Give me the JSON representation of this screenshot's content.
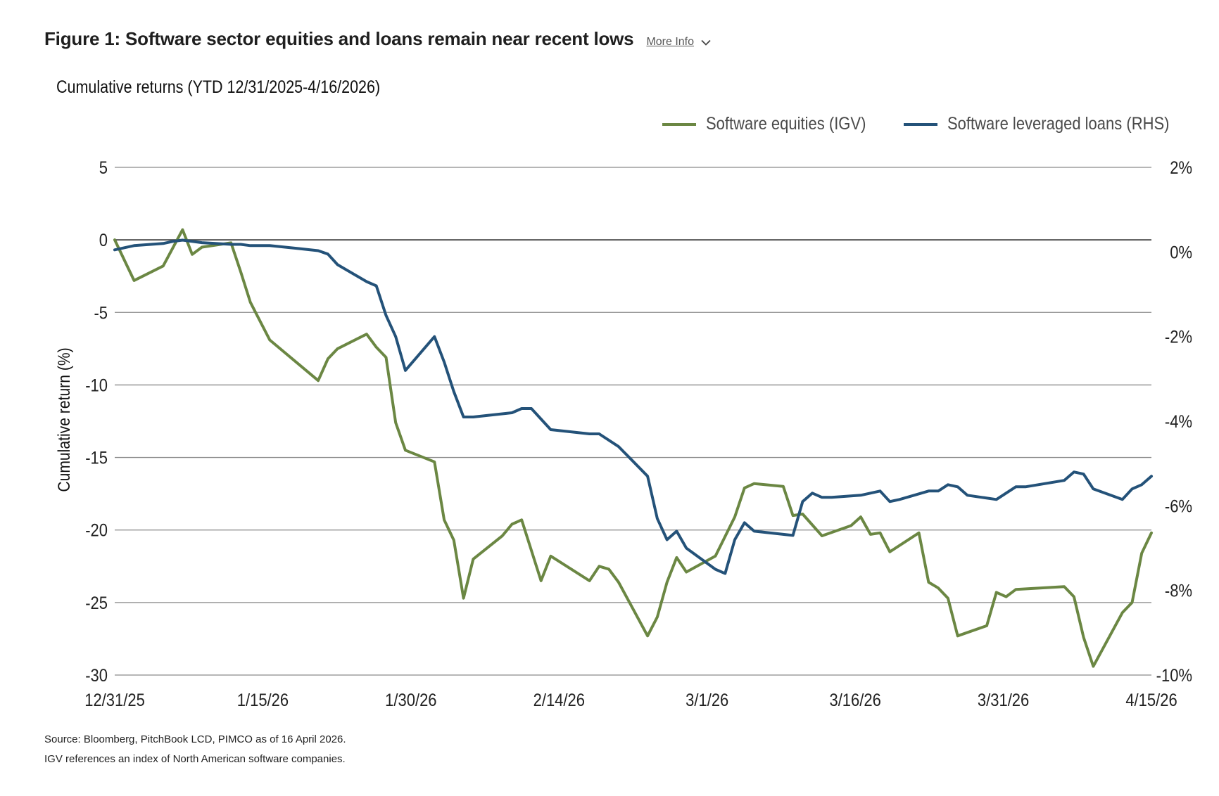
{
  "header": {
    "title": "Figure 1: Software sector equities and loans remain near recent lows",
    "more_info_label": "More Info"
  },
  "chart_data": {
    "type": "line",
    "title": "Cumulative returns (YTD 12/31/2025-4/16/2026)",
    "ylabel": "Cumulative return (%)",
    "ylabel_right": "",
    "ylim": [
      -30,
      5
    ],
    "ylim_right": [
      -10,
      2
    ],
    "yticks": [
      5,
      0,
      -5,
      -10,
      -15,
      -20,
      -25,
      -30
    ],
    "yticks_right": [
      "2%",
      "0%",
      "-2%",
      "-4%",
      "-6%",
      "-8%",
      "-10%"
    ],
    "yticks_right_values": [
      2,
      0,
      -2,
      -4,
      -6,
      -8,
      -10
    ],
    "xticks": [
      "12/31/25",
      "1/15/26",
      "1/30/26",
      "2/14/26",
      "3/1/26",
      "3/16/26",
      "3/31/26",
      "4/15/26"
    ],
    "legend_position": "top-right",
    "grid": true,
    "series": [
      {
        "name": "Software equities (IGV)",
        "axis": "left",
        "color": "#6b8743",
        "points": [
          [
            "2025-12-31",
            0.0
          ],
          [
            "2026-01-02",
            -2.8
          ],
          [
            "2026-01-05",
            -1.8
          ],
          [
            "2026-01-07",
            0.7
          ],
          [
            "2026-01-08",
            -1.0
          ],
          [
            "2026-01-09",
            -0.5
          ],
          [
            "2026-01-12",
            -0.2
          ],
          [
            "2026-01-13",
            -2.2
          ],
          [
            "2026-01-14",
            -4.3
          ],
          [
            "2026-01-16",
            -6.9
          ],
          [
            "2026-01-21",
            -9.7
          ],
          [
            "2026-01-22",
            -8.2
          ],
          [
            "2026-01-23",
            -7.5
          ],
          [
            "2026-01-26",
            -6.5
          ],
          [
            "2026-01-27",
            -7.4
          ],
          [
            "2026-01-28",
            -8.1
          ],
          [
            "2026-01-29",
            -12.6
          ],
          [
            "2026-01-30",
            -14.5
          ],
          [
            "2026-02-02",
            -15.3
          ],
          [
            "2026-02-03",
            -19.3
          ],
          [
            "2026-02-04",
            -20.7
          ],
          [
            "2026-02-05",
            -24.7
          ],
          [
            "2026-02-06",
            -22.0
          ],
          [
            "2026-02-09",
            -20.4
          ],
          [
            "2026-02-10",
            -19.6
          ],
          [
            "2026-02-11",
            -19.3
          ],
          [
            "2026-02-13",
            -23.5
          ],
          [
            "2026-02-14",
            -21.8
          ],
          [
            "2026-02-18",
            -23.5
          ],
          [
            "2026-02-19",
            -22.5
          ],
          [
            "2026-02-20",
            -22.7
          ],
          [
            "2026-02-21",
            -23.6
          ],
          [
            "2026-02-24",
            -27.3
          ],
          [
            "2026-02-25",
            -26.0
          ],
          [
            "2026-02-26",
            -23.6
          ],
          [
            "2026-02-27",
            -21.9
          ],
          [
            "2026-02-28",
            -22.9
          ],
          [
            "2026-03-03",
            -21.8
          ],
          [
            "2026-03-05",
            -19.1
          ],
          [
            "2026-03-06",
            -17.1
          ],
          [
            "2026-03-07",
            -16.8
          ],
          [
            "2026-03-10",
            -17.0
          ],
          [
            "2026-03-11",
            -19.0
          ],
          [
            "2026-03-12",
            -18.9
          ],
          [
            "2026-03-14",
            -20.4
          ],
          [
            "2026-03-17",
            -19.7
          ],
          [
            "2026-03-18",
            -19.1
          ],
          [
            "2026-03-19",
            -20.3
          ],
          [
            "2026-03-20",
            -20.2
          ],
          [
            "2026-03-21",
            -21.5
          ],
          [
            "2026-03-24",
            -20.2
          ],
          [
            "2026-03-25",
            -23.6
          ],
          [
            "2026-03-26",
            -24.0
          ],
          [
            "2026-03-27",
            -24.7
          ],
          [
            "2026-03-28",
            -27.3
          ],
          [
            "2026-03-31",
            -26.6
          ],
          [
            "2026-04-01",
            -24.3
          ],
          [
            "2026-04-02",
            -24.6
          ],
          [
            "2026-04-03",
            -24.1
          ],
          [
            "2026-04-08",
            -23.9
          ],
          [
            "2026-04-09",
            -24.6
          ],
          [
            "2026-04-10",
            -27.4
          ],
          [
            "2026-04-11",
            -29.4
          ],
          [
            "2026-04-14",
            -25.7
          ],
          [
            "2026-04-15",
            -25.0
          ],
          [
            "2026-04-16",
            -21.6
          ],
          [
            "2026-04-17",
            -20.2
          ]
        ]
      },
      {
        "name": "Software leveraged loans (RHS)",
        "axis": "right",
        "color": "#245279",
        "points": [
          [
            "2025-12-31",
            0.05
          ],
          [
            "2026-01-02",
            0.15
          ],
          [
            "2026-01-05",
            0.2
          ],
          [
            "2026-01-06",
            0.25
          ],
          [
            "2026-01-07",
            0.28
          ],
          [
            "2026-01-08",
            0.25
          ],
          [
            "2026-01-09",
            0.22
          ],
          [
            "2026-01-12",
            0.18
          ],
          [
            "2026-01-13",
            0.18
          ],
          [
            "2026-01-14",
            0.15
          ],
          [
            "2026-01-16",
            0.15
          ],
          [
            "2026-01-19",
            0.08
          ],
          [
            "2026-01-21",
            0.03
          ],
          [
            "2026-01-22",
            -0.05
          ],
          [
            "2026-01-23",
            -0.3
          ],
          [
            "2026-01-26",
            -0.7
          ],
          [
            "2026-01-27",
            -0.8
          ],
          [
            "2026-01-28",
            -1.5
          ],
          [
            "2026-01-29",
            -2.0
          ],
          [
            "2026-01-30",
            -2.8
          ],
          [
            "2026-02-02",
            -2.0
          ],
          [
            "2026-02-03",
            -2.6
          ],
          [
            "2026-02-04",
            -3.3
          ],
          [
            "2026-02-05",
            -3.9
          ],
          [
            "2026-02-06",
            -3.9
          ],
          [
            "2026-02-10",
            -3.8
          ],
          [
            "2026-02-11",
            -3.7
          ],
          [
            "2026-02-12",
            -3.7
          ],
          [
            "2026-02-14",
            -4.2
          ],
          [
            "2026-02-18",
            -4.3
          ],
          [
            "2026-02-19",
            -4.3
          ],
          [
            "2026-02-21",
            -4.6
          ],
          [
            "2026-02-24",
            -5.3
          ],
          [
            "2026-02-25",
            -6.3
          ],
          [
            "2026-02-26",
            -6.8
          ],
          [
            "2026-02-27",
            -6.6
          ],
          [
            "2026-02-28",
            -7.0
          ],
          [
            "2026-03-03",
            -7.5
          ],
          [
            "2026-03-04",
            -7.6
          ],
          [
            "2026-03-05",
            -6.8
          ],
          [
            "2026-03-06",
            -6.4
          ],
          [
            "2026-03-07",
            -6.6
          ],
          [
            "2026-03-11",
            -6.7
          ],
          [
            "2026-03-12",
            -5.9
          ],
          [
            "2026-03-13",
            -5.7
          ],
          [
            "2026-03-14",
            -5.8
          ],
          [
            "2026-03-15",
            -5.8
          ],
          [
            "2026-03-18",
            -5.75
          ],
          [
            "2026-03-20",
            -5.65
          ],
          [
            "2026-03-21",
            -5.9
          ],
          [
            "2026-03-22",
            -5.85
          ],
          [
            "2026-03-25",
            -5.65
          ],
          [
            "2026-03-26",
            -5.65
          ],
          [
            "2026-03-27",
            -5.5
          ],
          [
            "2026-03-28",
            -5.55
          ],
          [
            "2026-03-29",
            -5.75
          ],
          [
            "2026-04-01",
            -5.85
          ],
          [
            "2026-04-02",
            -5.7
          ],
          [
            "2026-04-03",
            -5.55
          ],
          [
            "2026-04-04",
            -5.55
          ],
          [
            "2026-04-08",
            -5.4
          ],
          [
            "2026-04-09",
            -5.2
          ],
          [
            "2026-04-10",
            -5.25
          ],
          [
            "2026-04-11",
            -5.6
          ],
          [
            "2026-04-14",
            -5.85
          ],
          [
            "2026-04-15",
            -5.6
          ],
          [
            "2026-04-16",
            -5.5
          ],
          [
            "2026-04-17",
            -5.3
          ]
        ]
      }
    ]
  },
  "footnotes": [
    "Source: Bloomberg, PitchBook LCD, PIMCO as of 16 April 2026.",
    "IGV references an index of North American software companies."
  ]
}
